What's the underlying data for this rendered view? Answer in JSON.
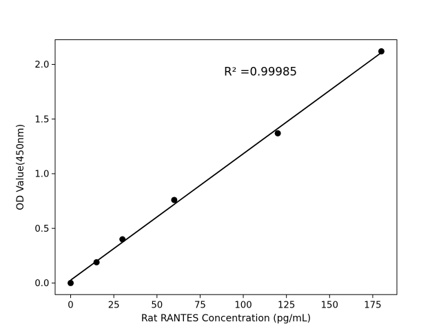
{
  "figure": {
    "background_color": "#ffffff"
  },
  "chart_data": {
    "type": "scatter",
    "title": "",
    "xlabel": "Rat RANTES Concentration (pg/mL)",
    "ylabel": "OD Value(450nm)",
    "x": [
      0,
      15,
      30,
      60,
      120,
      180
    ],
    "y": [
      0.0,
      0.19,
      0.4,
      0.76,
      1.37,
      2.12
    ],
    "fit_line": {
      "x": [
        0,
        180
      ],
      "y": [
        0.026,
        2.108
      ]
    },
    "annotation": {
      "text": "R² =0.99985",
      "x": 110,
      "y": 1.9
    },
    "xlim": [
      -9,
      189
    ],
    "ylim": [
      -0.106,
      2.226
    ],
    "xticks": [
      0,
      25,
      50,
      75,
      100,
      125,
      150,
      175
    ],
    "xtick_labels": [
      "0",
      "25",
      "50",
      "75",
      "100",
      "125",
      "150",
      "175"
    ],
    "yticks": [
      0.0,
      0.5,
      1.0,
      1.5,
      2.0
    ],
    "ytick_labels": [
      "0.0",
      "0.5",
      "1.0",
      "1.5",
      "2.0"
    ],
    "grid": false,
    "legend": null,
    "marker_color": "#000000",
    "line_color": "#000000",
    "axis_color": "#000000"
  }
}
